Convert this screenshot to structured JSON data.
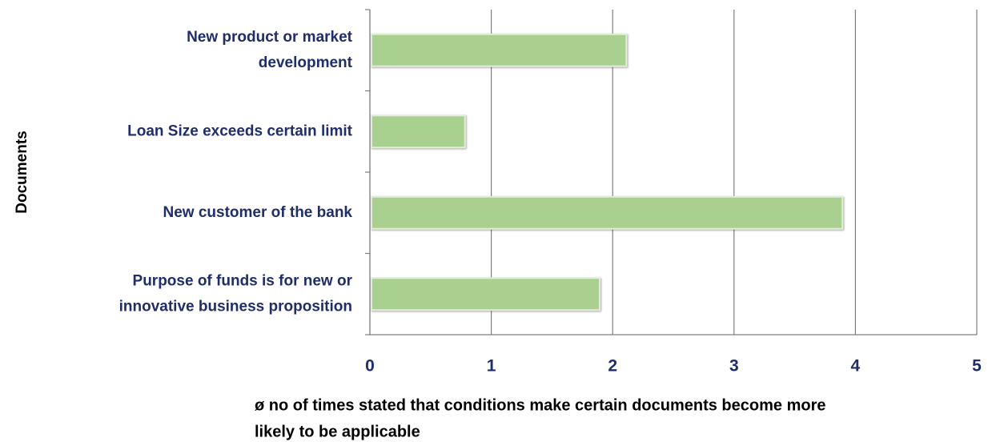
{
  "chart_data": {
    "type": "bar",
    "orientation": "horizontal",
    "categories": [
      [
        "New product or market",
        "development"
      ],
      [
        "Loan Size exceeds certain limit"
      ],
      [
        "New customer of the bank"
      ],
      [
        "Purpose of funds is for new or",
        "innovative business proposition"
      ]
    ],
    "values": [
      2.1,
      0.77,
      3.88,
      1.88
    ],
    "color": "#a9d08e",
    "xlim": [
      0,
      5
    ],
    "xticks": [
      0,
      1,
      2,
      3,
      4,
      5
    ],
    "grid": true,
    "x_label": [
      "ø no of times stated that conditions make certain documents become more",
      "likely to be applicable"
    ],
    "y_label": "Documents"
  }
}
